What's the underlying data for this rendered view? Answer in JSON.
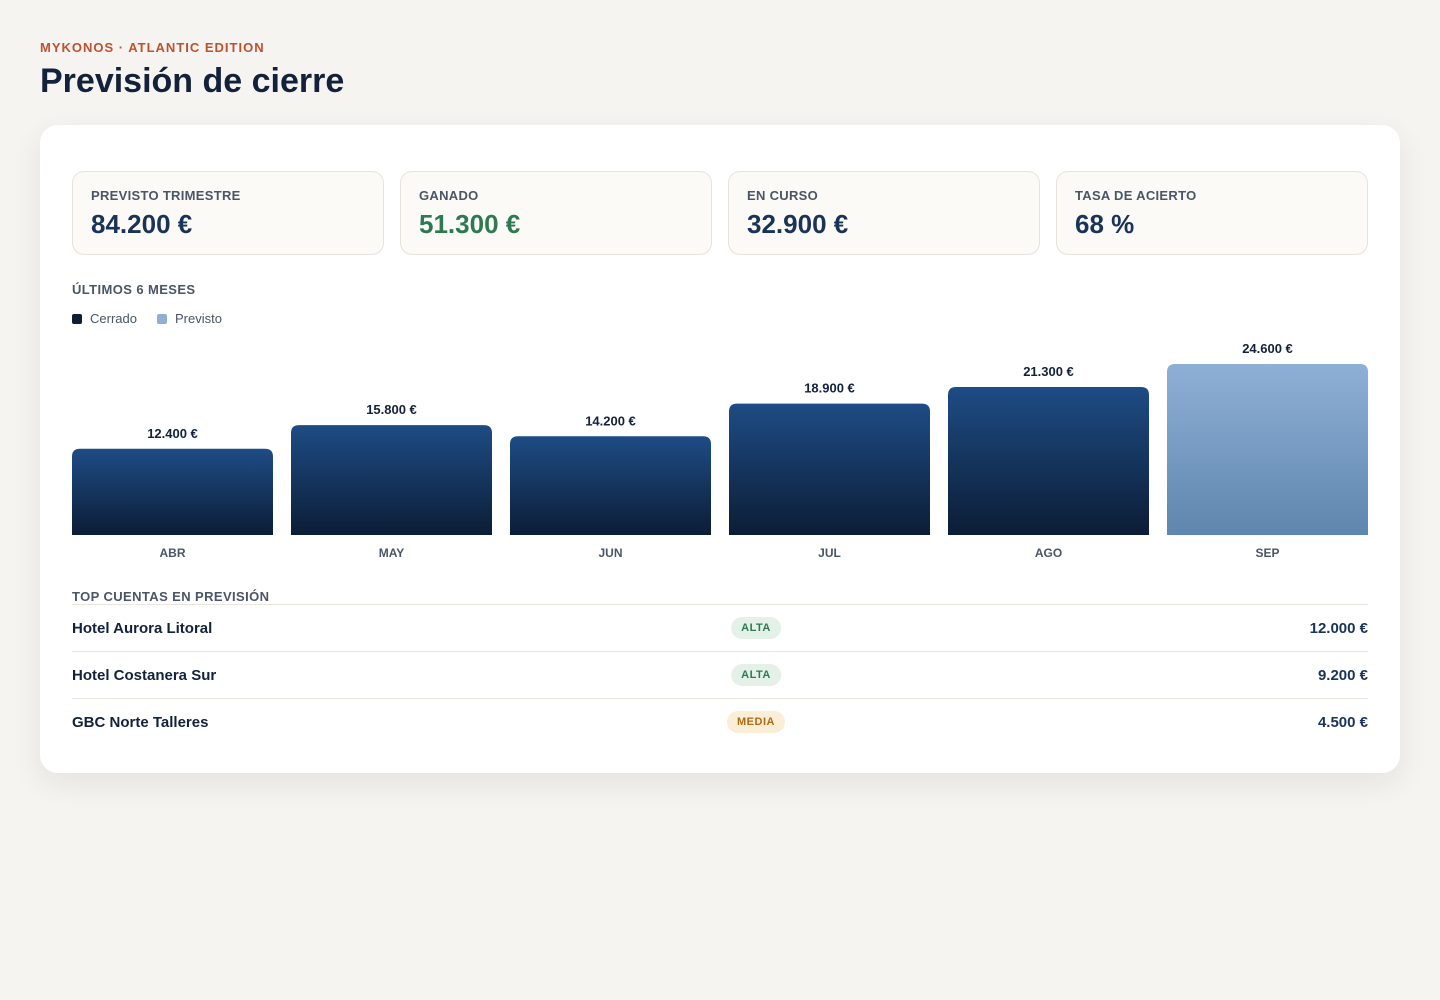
{
  "brand": "MYKONOS · ATLANTIC EDITION",
  "title": "Previsión de cierre",
  "kpis": [
    {
      "label": "PREVISTO TRIMESTRE",
      "value": "84.200 €"
    },
    {
      "label": "GANADO",
      "value": "51.300 €"
    },
    {
      "label": "EN CURSO",
      "value": "32.900 €"
    },
    {
      "label": "TASA DE ACIERTO",
      "value": "68 %"
    }
  ],
  "chart_section_label": "ÚLTIMOS 6 MESES",
  "legend": [
    {
      "label": "Cerrado",
      "color": "#0f1e36"
    },
    {
      "label": "Previsto",
      "color": "#8fb0d4"
    }
  ],
  "chart_data": {
    "type": "bar",
    "categories": [
      "ABR",
      "MAY",
      "JUN",
      "JUL",
      "AGO",
      "SEP"
    ],
    "values": [
      12400,
      15800,
      14200,
      18900,
      21300,
      24600
    ],
    "value_labels": [
      "12.400 €",
      "15.800 €",
      "14.200 €",
      "18.900 €",
      "21.300 €",
      "24.600 €"
    ],
    "status": [
      "Cerrado",
      "Cerrado",
      "Cerrado",
      "Cerrado",
      "Cerrado",
      "Previsto"
    ],
    "ylim": [
      0,
      24600
    ],
    "grid": false,
    "legend_position": "top-left"
  },
  "accounts_section_label": "TOP CUENTAS EN PREVISIÓN",
  "accounts": [
    {
      "name": "Hotel Aurora Litoral",
      "priority": "ALTA",
      "amount": "12.000 €"
    },
    {
      "name": "Hotel Costanera Sur",
      "priority": "ALTA",
      "amount": "9.200 €"
    },
    {
      "name": "GBC Norte Talleres",
      "priority": "MEDIA",
      "amount": "4.500 €"
    }
  ],
  "colors": {
    "brand": "#c0512f",
    "won": "#2d7a52",
    "closed_bar_top": "#1e4c85",
    "closed_bar_bottom": "#0c1d36",
    "forecast_bar_top": "#8fb0d6",
    "forecast_bar_bottom": "#5f86ae"
  }
}
